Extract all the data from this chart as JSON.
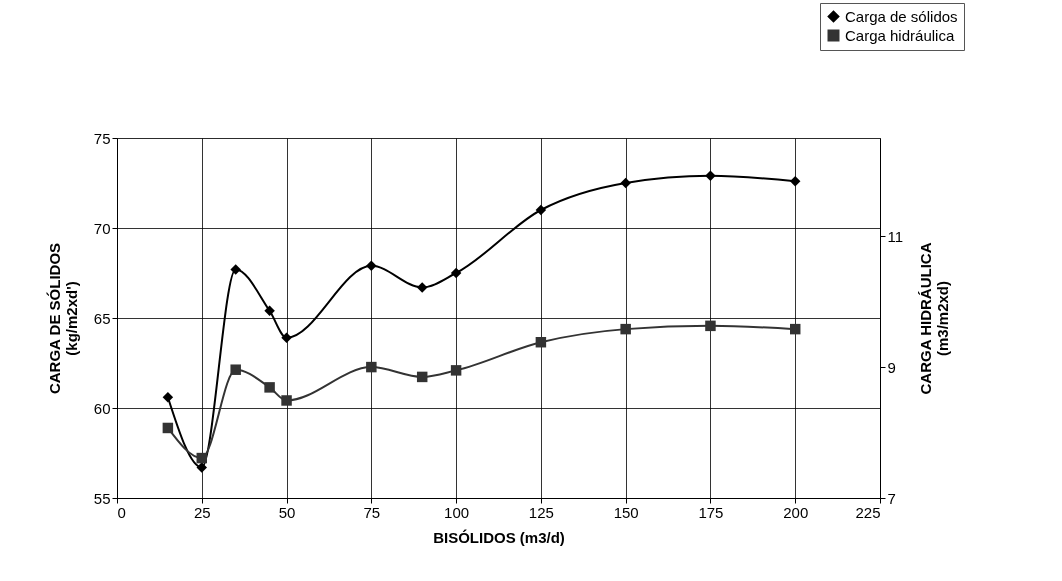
{
  "chart_data": {
    "type": "line",
    "xlabel": "BISÓLIDOS (m3/d)",
    "ylabel": "CARGA DE SÓLIDOS\n(kg/m2xd')",
    "y2label": "CARGA HIDRÁULICA\n(m3/m2xd)",
    "x": [
      15,
      25,
      35,
      45,
      50,
      75,
      90,
      100,
      125,
      150,
      175,
      200
    ],
    "series": [
      {
        "name": "Carga de sólidos",
        "color": "#000000",
        "marker": "diamond",
        "axis": "y",
        "values": [
          60.6,
          56.7,
          67.7,
          65.4,
          63.9,
          67.9,
          66.7,
          67.5,
          71.0,
          72.5,
          72.9,
          72.6
        ]
      },
      {
        "name": "Carga hidráulica",
        "color": "#333333",
        "marker": "square",
        "axis": "y2",
        "values": [
          8.07,
          7.61,
          8.96,
          8.69,
          8.49,
          9.0,
          8.85,
          8.95,
          9.38,
          9.58,
          9.63,
          9.58
        ]
      }
    ],
    "xlim": [
      0,
      225
    ],
    "xticks": [
      0,
      25,
      50,
      75,
      100,
      125,
      150,
      175,
      200,
      225
    ],
    "ylim": [
      55,
      75
    ],
    "yticks": [
      55,
      60,
      65,
      70,
      75
    ],
    "y2lim": [
      7,
      12.5
    ],
    "y2ticks": [
      7,
      9,
      11
    ],
    "grid": true,
    "legend": "top right",
    "line_style": "solid"
  }
}
